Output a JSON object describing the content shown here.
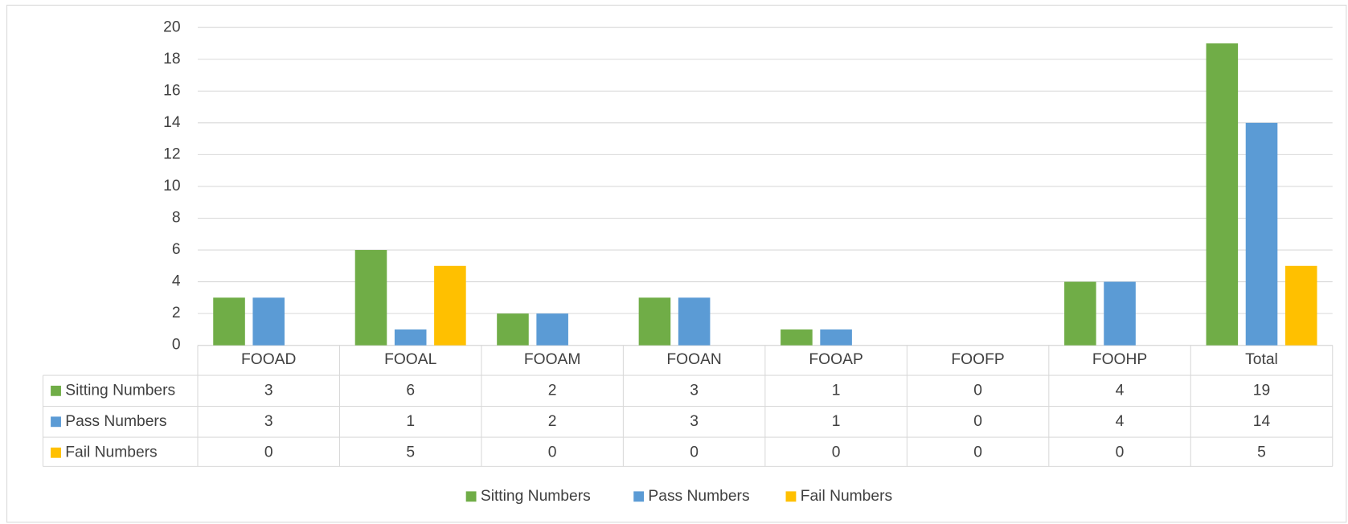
{
  "chart_data": {
    "type": "bar",
    "categories": [
      "FOOAD",
      "FOOAL",
      "FOOAM",
      "FOOAN",
      "FOOAP",
      "FOOFP",
      "FOOHP",
      "Total"
    ],
    "series": [
      {
        "name": "Sitting Numbers",
        "color": "#70ad47",
        "values": [
          3,
          6,
          2,
          3,
          1,
          0,
          4,
          19
        ]
      },
      {
        "name": "Pass Numbers",
        "color": "#5b9bd5",
        "values": [
          3,
          1,
          2,
          3,
          1,
          0,
          4,
          14
        ]
      },
      {
        "name": "Fail Numbers",
        "color": "#ffc000",
        "values": [
          0,
          5,
          0,
          0,
          0,
          0,
          0,
          5
        ]
      }
    ],
    "ylim": [
      0,
      20
    ],
    "yticks": [
      0,
      2,
      4,
      6,
      8,
      10,
      12,
      14,
      16,
      18,
      20
    ],
    "grid": true,
    "legend": "bottom"
  }
}
